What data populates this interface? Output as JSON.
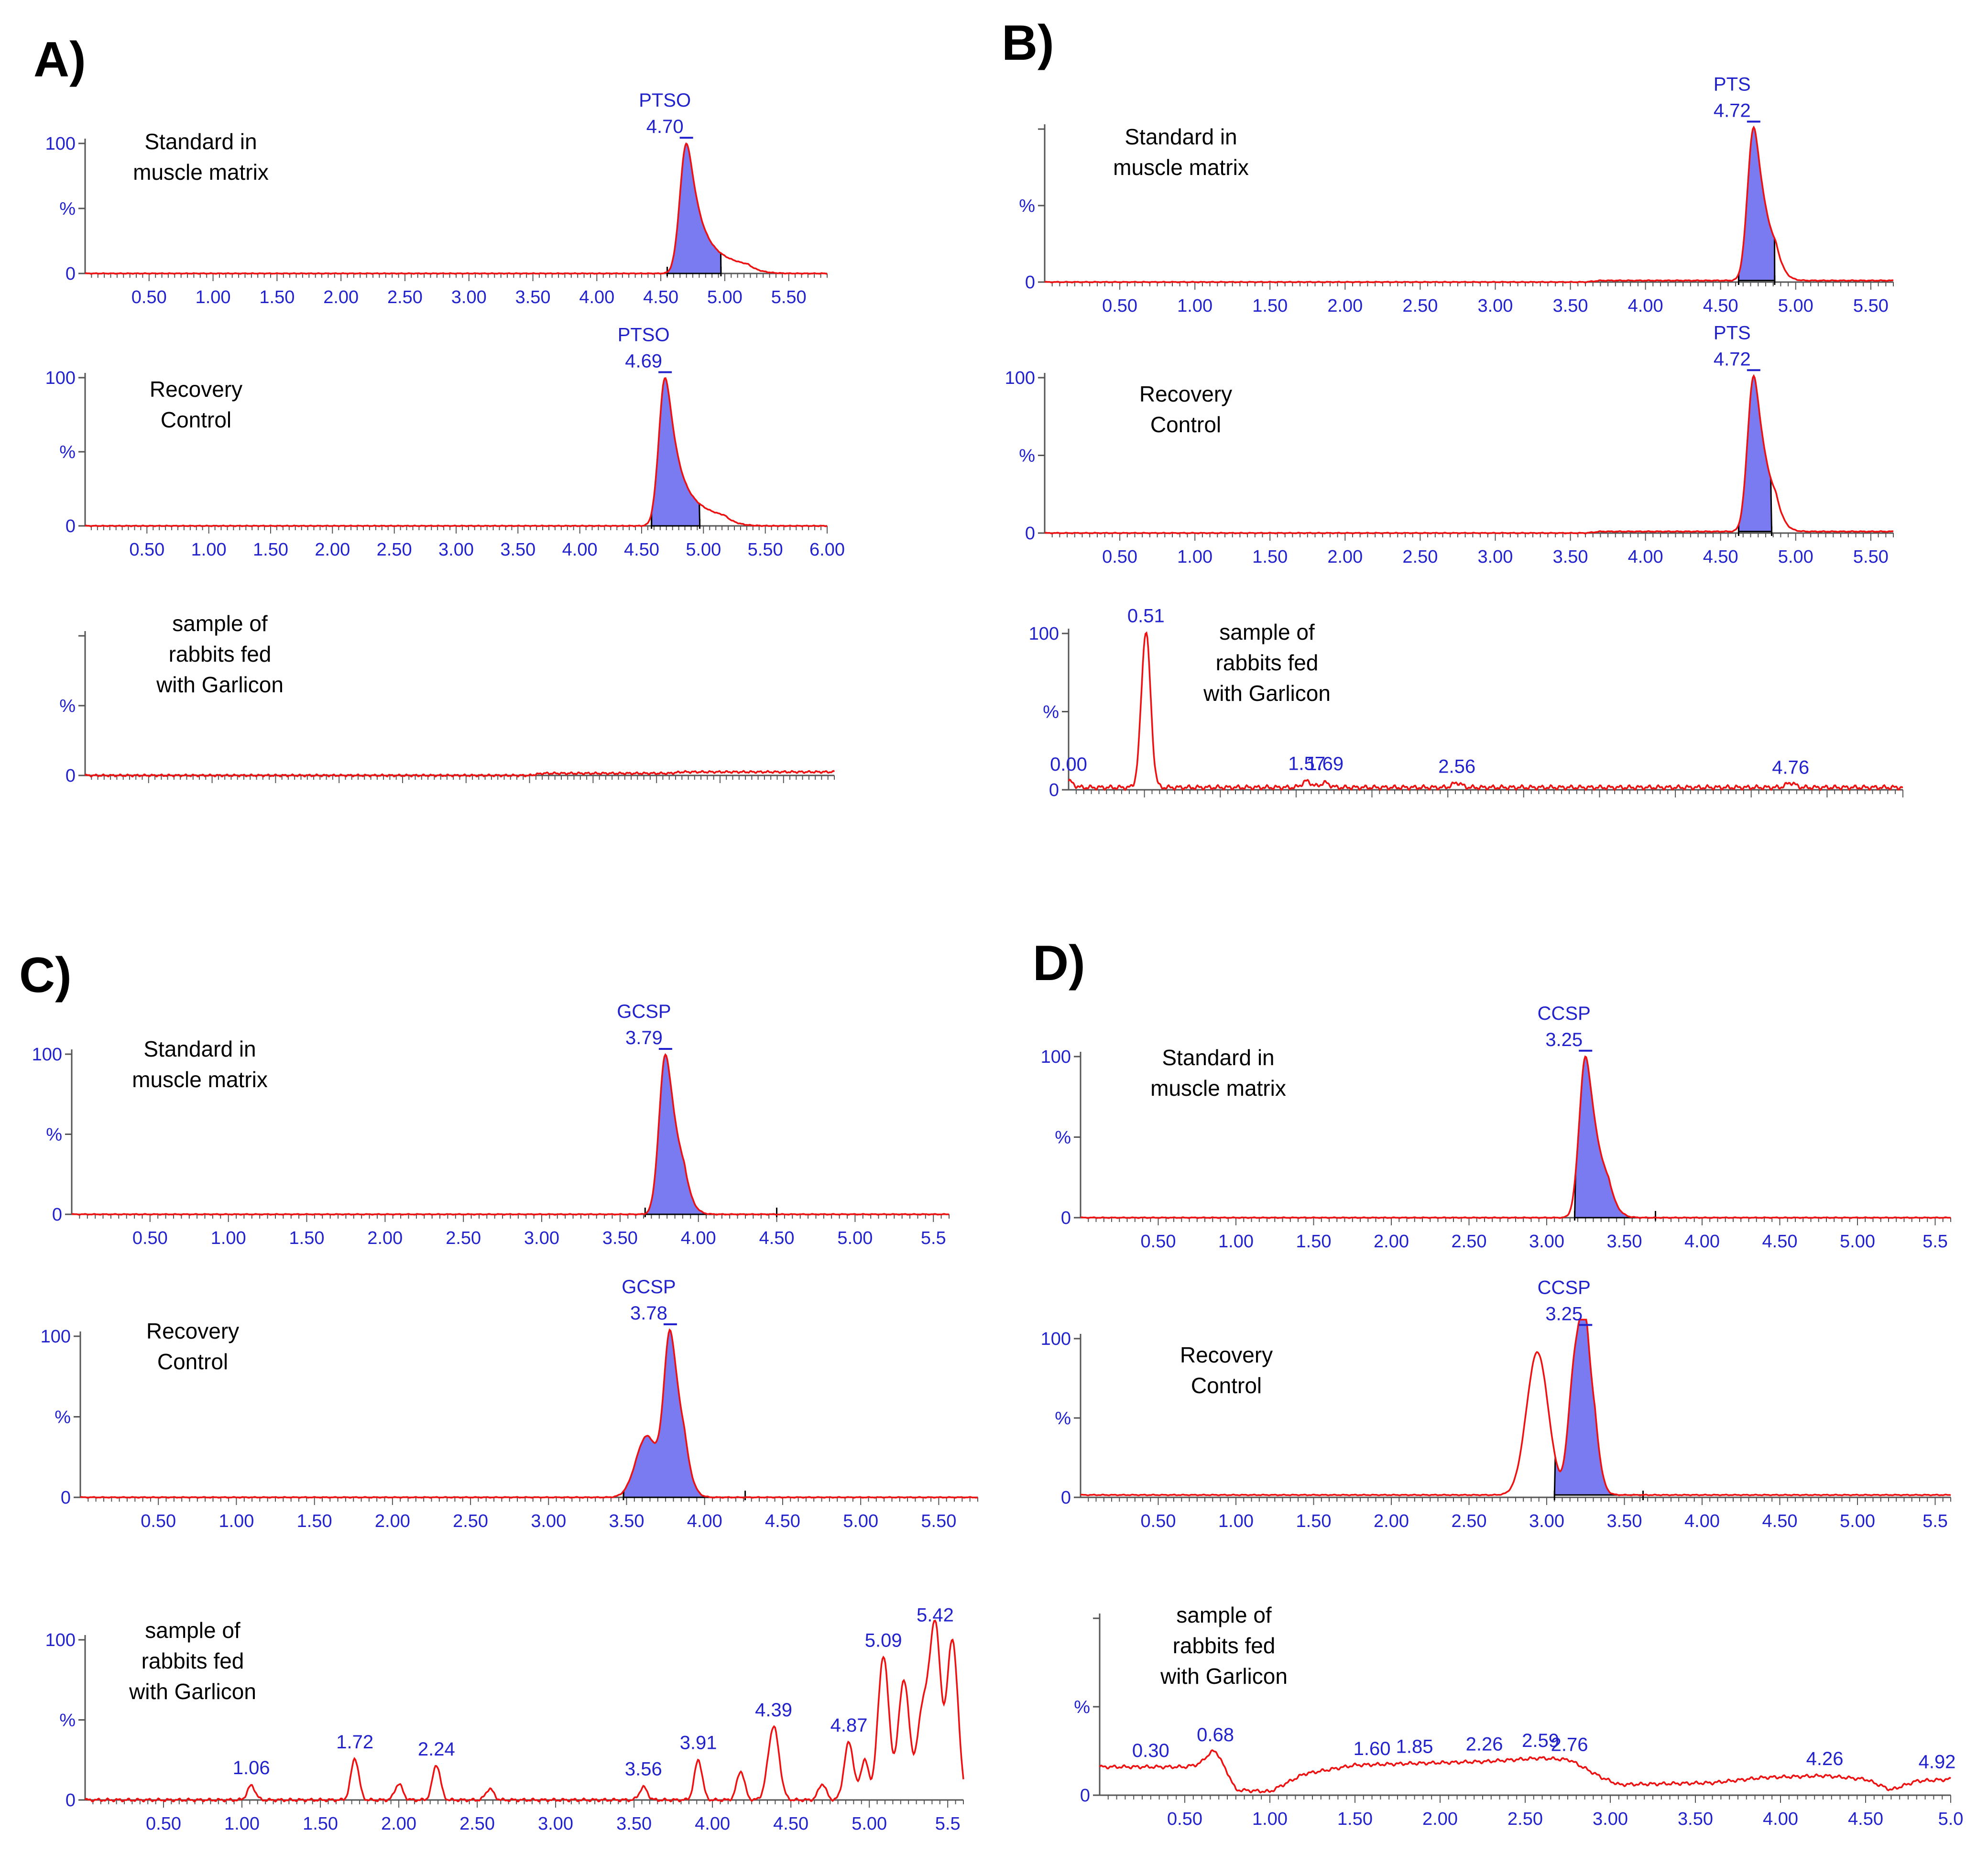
{
  "figure": {
    "panels": [
      {
        "label": "A)",
        "name": "panel-a"
      },
      {
        "label": "B)",
        "name": "panel-b"
      },
      {
        "label": "C)",
        "name": "panel-c"
      },
      {
        "label": "D)",
        "name": "panel-d"
      }
    ]
  },
  "chart_data": [
    {
      "type": "line",
      "panel": "A)",
      "title": "Standard in muscle matrix",
      "desc_lines": [
        "Standard in",
        "muscle matrix"
      ],
      "xlim": [
        0,
        5.8
      ],
      "ylim": [
        0,
        100
      ],
      "x_ticks": [
        "0.50",
        "1.00",
        "1.50",
        "2.00",
        "2.50",
        "3.00",
        "3.50",
        "4.00",
        "4.50",
        "5.00",
        "5.50"
      ],
      "y_ticks": [
        "100",
        "%",
        "0"
      ],
      "peak_labels": [
        {
          "lines": [
            "PTSO",
            "4.70"
          ],
          "x": 4.7
        }
      ],
      "series": [
        {
          "name": "PTSO",
          "peaks": [
            {
              "x": 4.7,
              "h": 100,
              "w": 0.05,
              "tail": 0.16
            }
          ],
          "fill": [
            4.55,
            4.97
          ],
          "noise": 0.3
        }
      ]
    },
    {
      "type": "line",
      "panel": "A)",
      "title": "Recovery Control",
      "desc_lines": [
        "Recovery",
        "Control"
      ],
      "xlim": [
        0,
        6.0
      ],
      "ylim": [
        0,
        100
      ],
      "x_ticks": [
        "0.50",
        "1.00",
        "1.50",
        "2.00",
        "2.50",
        "3.00",
        "3.50",
        "4.00",
        "4.50",
        "5.00",
        "5.50",
        "6.00"
      ],
      "y_ticks": [
        "100",
        "%",
        "0"
      ],
      "peak_labels": [
        {
          "lines": [
            "PTSO",
            "4.69"
          ],
          "x": 4.69
        }
      ],
      "series": [
        {
          "name": "PTSO",
          "peaks": [
            {
              "x": 4.69,
              "h": 100,
              "w": 0.05,
              "tail": 0.16
            }
          ],
          "fill": [
            4.58,
            4.97
          ],
          "noise": 0.3
        }
      ]
    },
    {
      "type": "line",
      "panel": "A)",
      "title": "sample of rabbits fed with Garlicon",
      "desc_lines": [
        "sample of",
        "rabbits fed",
        "with Garlicon"
      ],
      "xlim": [
        0,
        5.9
      ],
      "ylim": [
        0,
        100
      ],
      "x_ticks": [],
      "y_ticks": [
        "",
        "%",
        "0"
      ],
      "peak_labels": [],
      "series": [
        {
          "name": "blank",
          "peaks": [],
          "fill": null,
          "noise": 0.8,
          "baseline": [
            [
              0,
              0
            ],
            [
              3.5,
              0
            ],
            [
              3.6,
              1.5
            ],
            [
              4.6,
              1.5
            ],
            [
              4.7,
              2.5
            ],
            [
              5.9,
              2.5
            ]
          ]
        }
      ]
    },
    {
      "type": "line",
      "panel": "B)",
      "title": "Standard in muscle matrix",
      "desc_lines": [
        "Standard in",
        "muscle matrix"
      ],
      "xlim": [
        0,
        5.65
      ],
      "ylim": [
        0,
        100
      ],
      "x_ticks": [
        "0.50",
        "1.00",
        "1.50",
        "2.00",
        "2.50",
        "3.00",
        "3.50",
        "4.00",
        "4.50",
        "5.00",
        "5.50"
      ],
      "y_ticks": [
        "",
        "%",
        "0"
      ],
      "peak_labels": [
        {
          "lines": [
            "PTS",
            "4.72"
          ],
          "x": 4.72
        }
      ],
      "series": [
        {
          "name": "PTS",
          "peaks": [
            {
              "x": 4.72,
              "h": 100,
              "w": 0.04,
              "tail": 0.05
            }
          ],
          "fill": [
            4.62,
            4.86
          ],
          "noise": 0.3,
          "baseline": [
            [
              0,
              0
            ],
            [
              3.6,
              0
            ],
            [
              3.7,
              1
            ],
            [
              5.65,
              1
            ]
          ]
        }
      ]
    },
    {
      "type": "line",
      "panel": "B)",
      "title": "Recovery Control",
      "desc_lines": [
        "Recovery",
        "Control"
      ],
      "xlim": [
        0,
        5.65
      ],
      "ylim": [
        0,
        100
      ],
      "x_ticks": [
        "0.50",
        "1.00",
        "1.50",
        "2.00",
        "2.50",
        "3.00",
        "3.50",
        "4.00",
        "4.50",
        "5.00",
        "5.50"
      ],
      "y_ticks": [
        "100",
        "%",
        "0"
      ],
      "peak_labels": [
        {
          "lines": [
            "PTS",
            "4.72"
          ],
          "x": 4.72
        }
      ],
      "series": [
        {
          "name": "PTS",
          "peaks": [
            {
              "x": 4.72,
              "h": 100,
              "w": 0.04,
              "tail": 0.05
            }
          ],
          "fill": [
            4.62,
            4.84
          ],
          "noise": 0.3,
          "baseline": [
            [
              0,
              0
            ],
            [
              3.6,
              0
            ],
            [
              3.7,
              1
            ],
            [
              5.65,
              1
            ]
          ]
        }
      ]
    },
    {
      "type": "line",
      "panel": "B)",
      "title": "sample of rabbits fed with Garlicon",
      "desc_lines": [
        "sample of",
        "rabbits fed",
        "with Garlicon"
      ],
      "xlim": [
        0,
        5.5
      ],
      "ylim": [
        0,
        100
      ],
      "x_ticks": [],
      "y_ticks": [
        "100",
        "%",
        "0"
      ],
      "peak_labels": [
        {
          "lines": [
            "0.00"
          ],
          "x": 0.0
        },
        {
          "lines": [
            "0.51"
          ],
          "x": 0.51
        },
        {
          "lines": [
            "1.57"
          ],
          "x": 1.57
        },
        {
          "lines": [
            "1.69"
          ],
          "x": 1.69
        },
        {
          "lines": [
            "2.56"
          ],
          "x": 2.56
        },
        {
          "lines": [
            "4.76"
          ],
          "x": 4.76
        }
      ],
      "series": [
        {
          "name": "sample",
          "peaks": [
            {
              "x": 0.0,
              "h": 4,
              "w": 0.03
            },
            {
              "x": 0.51,
              "h": 100,
              "w": 0.03
            },
            {
              "x": 1.57,
              "h": 4,
              "w": 0.03
            },
            {
              "x": 1.69,
              "h": 3,
              "w": 0.03
            },
            {
              "x": 2.56,
              "h": 3,
              "w": 0.03
            },
            {
              "x": 4.76,
              "h": 3,
              "w": 0.03
            }
          ],
          "fill": null,
          "noise": 1.5,
          "baseline": [
            [
              0,
              1.5
            ],
            [
              5.5,
              1.5
            ]
          ]
        }
      ]
    },
    {
      "type": "line",
      "panel": "C)",
      "title": "Standard in muscle matrix",
      "desc_lines": [
        "Standard in",
        "muscle matrix"
      ],
      "xlim": [
        0,
        5.6
      ],
      "ylim": [
        0,
        100
      ],
      "x_ticks": [
        "0.50",
        "1.00",
        "1.50",
        "2.00",
        "2.50",
        "3.00",
        "3.50",
        "4.00",
        "4.50",
        "5.00",
        "5.5"
      ],
      "y_ticks": [
        "100",
        "%",
        "0"
      ],
      "peak_labels": [
        {
          "lines": [
            "GCSP",
            "3.79"
          ],
          "x": 3.79
        }
      ],
      "series": [
        {
          "name": "GCSP",
          "peaks": [
            {
              "x": 3.79,
              "h": 100,
              "w": 0.04,
              "tail": 0.04
            }
          ],
          "fill": [
            3.66,
            4.5
          ],
          "noise": 0.3
        }
      ]
    },
    {
      "type": "line",
      "panel": "C)",
      "title": "Recovery Control",
      "desc_lines": [
        "Recovery",
        "Control"
      ],
      "xlim": [
        0,
        5.75
      ],
      "ylim": [
        0,
        100
      ],
      "x_ticks": [
        "0.50",
        "1.00",
        "1.50",
        "2.00",
        "2.50",
        "3.00",
        "3.50",
        "4.00",
        "4.50",
        "5.00",
        "5.50"
      ],
      "y_ticks": [
        "100",
        "%",
        "0"
      ],
      "peak_labels": [
        {
          "lines": [
            "GCSP",
            "3.78"
          ],
          "x": 3.78
        }
      ],
      "series": [
        {
          "name": "GCSP",
          "peaks": [
            {
              "x": 3.78,
              "h": 100,
              "w": 0.04,
              "tail": 0.03
            },
            {
              "x": 3.63,
              "h": 38,
              "w": 0.07
            }
          ],
          "fill": [
            3.48,
            4.26
          ],
          "noise": 0.3
        }
      ]
    },
    {
      "type": "line",
      "panel": "C)",
      "title": "sample of rabbits fed with Garlicon",
      "desc_lines": [
        "sample of",
        "rabbits fed",
        "with Garlicon"
      ],
      "xlim": [
        0,
        5.6
      ],
      "ylim": [
        0,
        100
      ],
      "x_ticks": [
        "0.50",
        "1.00",
        "1.50",
        "2.00",
        "2.50",
        "3.00",
        "3.50",
        "4.00",
        "4.50",
        "5.00",
        "5.5"
      ],
      "y_ticks": [
        "100",
        "%",
        "0"
      ],
      "peak_labels": [
        {
          "lines": [
            "1.06"
          ],
          "x": 1.06
        },
        {
          "lines": [
            "1.72"
          ],
          "x": 1.72
        },
        {
          "lines": [
            "2.24"
          ],
          "x": 2.24
        },
        {
          "lines": [
            "3.56"
          ],
          "x": 3.56
        },
        {
          "lines": [
            "3.91"
          ],
          "x": 3.91
        },
        {
          "lines": [
            "4.39"
          ],
          "x": 4.39
        },
        {
          "lines": [
            "4.87"
          ],
          "x": 4.87
        },
        {
          "lines": [
            "5.09"
          ],
          "x": 5.09
        },
        {
          "lines": [
            "5.42"
          ],
          "x": 5.42
        }
      ],
      "series": [
        {
          "name": "sample",
          "peaks": [
            {
              "x": 1.06,
              "h": 9,
              "w": 0.025
            },
            {
              "x": 1.72,
              "h": 26,
              "w": 0.025
            },
            {
              "x": 2.0,
              "h": 10,
              "w": 0.025
            },
            {
              "x": 2.24,
              "h": 22,
              "w": 0.025
            },
            {
              "x": 2.58,
              "h": 7,
              "w": 0.025
            },
            {
              "x": 3.56,
              "h": 8,
              "w": 0.025
            },
            {
              "x": 3.91,
              "h": 25,
              "w": 0.025
            },
            {
              "x": 4.18,
              "h": 18,
              "w": 0.025
            },
            {
              "x": 4.39,
              "h": 46,
              "w": 0.035
            },
            {
              "x": 4.7,
              "h": 10,
              "w": 0.025
            },
            {
              "x": 4.87,
              "h": 36,
              "w": 0.03
            },
            {
              "x": 4.97,
              "h": 25,
              "w": 0.025
            },
            {
              "x": 5.09,
              "h": 90,
              "w": 0.035
            },
            {
              "x": 5.22,
              "h": 75,
              "w": 0.035
            },
            {
              "x": 5.34,
              "h": 55,
              "w": 0.035
            },
            {
              "x": 5.42,
              "h": 108,
              "w": 0.035
            },
            {
              "x": 5.53,
              "h": 100,
              "w": 0.035
            }
          ],
          "fill": null,
          "noise": 1.0
        }
      ]
    },
    {
      "type": "line",
      "panel": "D)",
      "title": "Standard in muscle matrix",
      "desc_lines": [
        "Standard in",
        "muscle matrix"
      ],
      "xlim": [
        0,
        5.6
      ],
      "ylim": [
        0,
        100
      ],
      "x_ticks": [
        "0.50",
        "1.00",
        "1.50",
        "2.00",
        "2.50",
        "3.00",
        "3.50",
        "4.00",
        "4.50",
        "5.00",
        "5.5"
      ],
      "y_ticks": [
        "100",
        "%",
        "0"
      ],
      "peak_labels": [
        {
          "lines": [
            "CCSP",
            "3.25"
          ],
          "x": 3.25
        }
      ],
      "series": [
        {
          "name": "CCSP",
          "peaks": [
            {
              "x": 3.25,
              "h": 100,
              "w": 0.04,
              "tail": 0.05
            }
          ],
          "fill": [
            3.18,
            3.7
          ],
          "noise": 0.3
        }
      ]
    },
    {
      "type": "line",
      "panel": "D)",
      "title": "Recovery Control",
      "desc_lines": [
        "Recovery",
        "Control"
      ],
      "xlim": [
        0,
        5.6
      ],
      "ylim": [
        0,
        100
      ],
      "x_ticks": [
        "0.50",
        "1.00",
        "1.50",
        "2.00",
        "2.50",
        "3.00",
        "3.50",
        "4.00",
        "4.50",
        "5.00",
        "5.5"
      ],
      "y_ticks": [
        "100",
        "%",
        "0"
      ],
      "peak_labels": [
        {
          "lines": [
            "CCSP",
            "3.25"
          ],
          "x": 3.25
        }
      ],
      "series": [
        {
          "name": "CCSP",
          "peaks": [
            {
              "x": 3.25,
              "h": 100,
              "w": 0.035,
              "tail": 0.02
            },
            {
              "x": 3.18,
              "h": 78,
              "w": 0.04
            },
            {
              "x": 2.94,
              "h": 90,
              "w": 0.07
            }
          ],
          "fill": [
            3.05,
            3.62
          ],
          "noise": 0.3,
          "baseline": [
            [
              0,
              1.5
            ],
            [
              5.6,
              1.5
            ]
          ]
        }
      ]
    },
    {
      "type": "line",
      "panel": "D)",
      "title": "sample of rabbits fed with Garlicon",
      "desc_lines": [
        "sample of",
        "rabbits fed",
        "with Garlicon"
      ],
      "xlim": [
        0,
        5.0
      ],
      "ylim": [
        0,
        100
      ],
      "x_ticks": [
        "0.50",
        "1.00",
        "1.50",
        "2.00",
        "2.50",
        "3.00",
        "3.50",
        "4.00",
        "4.50",
        "5.0"
      ],
      "y_ticks": [
        "",
        "%",
        "0"
      ],
      "peak_labels": [
        {
          "lines": [
            "0.30"
          ],
          "x": 0.3
        },
        {
          "lines": [
            "0.68"
          ],
          "x": 0.68
        },
        {
          "lines": [
            "1.60"
          ],
          "x": 1.6
        },
        {
          "lines": [
            "1.85"
          ],
          "x": 1.85
        },
        {
          "lines": [
            "2.26"
          ],
          "x": 2.26
        },
        {
          "lines": [
            "2.59"
          ],
          "x": 2.59
        },
        {
          "lines": [
            "2.76"
          ],
          "x": 2.76
        },
        {
          "lines": [
            "4.26"
          ],
          "x": 4.26
        },
        {
          "lines": [
            "4.92"
          ],
          "x": 4.92
        }
      ],
      "series": [
        {
          "name": "sample",
          "peaks": [
            {
              "x": 0.68,
              "h": 10,
              "w": 0.04
            }
          ],
          "fill": null,
          "noise": 1.0,
          "baseline": [
            [
              0,
              16
            ],
            [
              0.5,
              16
            ],
            [
              0.62,
              18
            ],
            [
              0.76,
              10
            ],
            [
              0.8,
              3
            ],
            [
              1.0,
              2
            ],
            [
              1.2,
              12
            ],
            [
              1.5,
              17
            ],
            [
              1.85,
              18
            ],
            [
              2.26,
              19
            ],
            [
              2.59,
              21
            ],
            [
              2.76,
              20
            ],
            [
              2.95,
              10
            ],
            [
              3.05,
              6
            ],
            [
              3.6,
              7
            ],
            [
              3.9,
              10
            ],
            [
              4.26,
              11
            ],
            [
              4.5,
              9
            ],
            [
              4.65,
              3
            ],
            [
              4.8,
              8
            ],
            [
              5.0,
              9
            ]
          ]
        }
      ]
    }
  ]
}
